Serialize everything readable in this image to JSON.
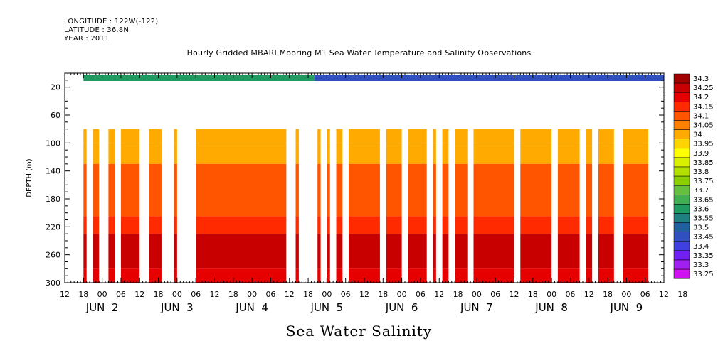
{
  "header": {
    "longitude": "LONGITUDE : 122W(-122)",
    "latitude": "LATITUDE : 36.8N",
    "year": "YEAR : 2011"
  },
  "chart_data": {
    "type": "heatmap",
    "title": "Hourly Gridded MBARI Mooring M1 Sea Water Temperature and Salinity Observations",
    "ylabel": "DEPTH (m)",
    "bottom_label": "Sea Water Salinity",
    "y_axis": {
      "range": [
        0,
        300
      ],
      "inverted": true,
      "ticks": [
        20,
        60,
        100,
        140,
        180,
        220,
        260,
        300
      ]
    },
    "x_axis": {
      "start": "2011-06-01 12:00",
      "end": "2011-06-09 12:00",
      "hour_ticks": [
        "12",
        "18",
        "00",
        "06",
        "12",
        "18",
        "00",
        "06",
        "12",
        "18",
        "00",
        "06",
        "12",
        "18",
        "00",
        "06",
        "12",
        "18",
        "00",
        "06",
        "12",
        "18",
        "00",
        "06",
        "12",
        "18",
        "00",
        "06",
        "12",
        "18",
        "00",
        "06",
        "12",
        "18"
      ],
      "day_labels": [
        {
          "label": "JUN  2",
          "date": "2011-06-02"
        },
        {
          "label": "JUN  3",
          "date": "2011-06-03"
        },
        {
          "label": "JUN  4",
          "date": "2011-06-04"
        },
        {
          "label": "JUN  5",
          "date": "2011-06-05"
        },
        {
          "label": "JUN  6",
          "date": "2011-06-06"
        },
        {
          "label": "JUN  7",
          "date": "2011-06-07"
        },
        {
          "label": "JUN  8",
          "date": "2011-06-08"
        },
        {
          "label": "JUN  9",
          "date": "2011-06-09"
        }
      ]
    },
    "colorbar": {
      "levels": [
        34.3,
        34.25,
        34.2,
        34.15,
        34.1,
        34.05,
        34,
        33.95,
        33.9,
        33.85,
        33.8,
        33.75,
        33.7,
        33.65,
        33.6,
        33.55,
        33.5,
        33.45,
        33.4,
        33.35,
        33.3,
        33.25
      ],
      "colors": [
        "#a00000",
        "#c80000",
        "#e60000",
        "#ff2a00",
        "#ff5500",
        "#ff7f00",
        "#ffaa00",
        "#ffd400",
        "#ffff00",
        "#d9f000",
        "#b3e000",
        "#8cd000",
        "#66c040",
        "#40b050",
        "#209a60",
        "#208080",
        "#2060a0",
        "#3050c0",
        "#4040e0",
        "#7020f0",
        "#a020f0",
        "#d010f0"
      ]
    },
    "surface_band": {
      "depth": 10,
      "segments": [
        {
          "from": "2011-06-01 18:00",
          "to": "2011-06-04 20:00",
          "salinity": 33.6
        },
        {
          "from": "2011-06-04 20:00",
          "to": "2011-06-09 12:00",
          "salinity": 33.45
        }
      ]
    },
    "data_columns": [
      {
        "from": "2011-06-01 18:00",
        "to": "2011-06-01 19:00"
      },
      {
        "from": "2011-06-01 21:00",
        "to": "2011-06-01 23:00"
      },
      {
        "from": "2011-06-02 02:00",
        "to": "2011-06-02 04:00"
      },
      {
        "from": "2011-06-02 06:00",
        "to": "2011-06-02 12:00"
      },
      {
        "from": "2011-06-02 15:00",
        "to": "2011-06-02 19:00"
      },
      {
        "from": "2011-06-02 23:00",
        "to": "2011-06-03 00:00"
      },
      {
        "from": "2011-06-03 06:00",
        "to": "2011-06-04 11:00"
      },
      {
        "from": "2011-06-04 14:00",
        "to": "2011-06-04 15:00"
      },
      {
        "from": "2011-06-04 21:00",
        "to": "2011-06-04 22:00"
      },
      {
        "from": "2011-06-05 00:00",
        "to": "2011-06-05 01:00"
      },
      {
        "from": "2011-06-05 03:00",
        "to": "2011-06-05 05:00"
      },
      {
        "from": "2011-06-05 07:00",
        "to": "2011-06-05 17:00"
      },
      {
        "from": "2011-06-05 19:00",
        "to": "2011-06-06 00:00"
      },
      {
        "from": "2011-06-06 02:00",
        "to": "2011-06-06 08:00"
      },
      {
        "from": "2011-06-06 10:00",
        "to": "2011-06-06 11:00"
      },
      {
        "from": "2011-06-06 13:00",
        "to": "2011-06-06 15:00"
      },
      {
        "from": "2011-06-06 17:00",
        "to": "2011-06-06 21:00"
      },
      {
        "from": "2011-06-06 23:00",
        "to": "2011-06-07 12:00"
      },
      {
        "from": "2011-06-07 14:00",
        "to": "2011-06-08 00:00"
      },
      {
        "from": "2011-06-08 02:00",
        "to": "2011-06-08 09:00"
      },
      {
        "from": "2011-06-08 11:00",
        "to": "2011-06-08 13:00"
      },
      {
        "from": "2011-06-08 15:00",
        "to": "2011-06-08 20:00"
      },
      {
        "from": "2011-06-08 23:00",
        "to": "2011-06-09 07:00"
      }
    ],
    "salinity_profile": [
      {
        "depth_top": 80,
        "depth_bottom": 100,
        "salinity": 33.98
      },
      {
        "depth_top": 100,
        "depth_bottom": 130,
        "salinity": 34.02
      },
      {
        "depth_top": 130,
        "depth_bottom": 205,
        "salinity": 34.08
      },
      {
        "depth_top": 205,
        "depth_bottom": 230,
        "salinity": 34.15
      },
      {
        "depth_top": 230,
        "depth_bottom": 280,
        "salinity": 34.25
      },
      {
        "depth_top": 280,
        "depth_bottom": 300,
        "salinity": 34.18
      }
    ]
  }
}
